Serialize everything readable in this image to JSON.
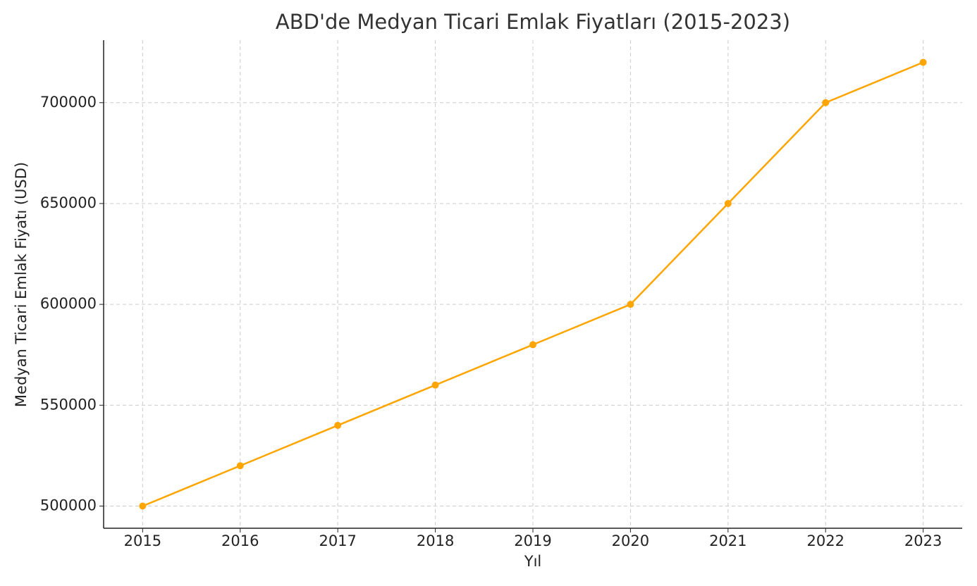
{
  "chart_data": {
    "type": "line",
    "title": "ABD'de Medyan Ticari Emlak Fiyatları (2015-2023)",
    "x_label": "Yıl",
    "y_label": "Medyan Ticari Emlak Fiyatı (USD)",
    "x": [
      2015,
      2016,
      2017,
      2018,
      2019,
      2020,
      2021,
      2022,
      2023
    ],
    "series": [
      {
        "color": "#ffa500",
        "values": [
          500000,
          520000,
          540000,
          560000,
          580000,
          600000,
          650000,
          700000,
          720000
        ]
      }
    ],
    "xlim": [
      2014.6,
      2023.4
    ],
    "xticks": [
      2015,
      2016,
      2017,
      2018,
      2019,
      2020,
      2021,
      2022,
      2023
    ],
    "ylim": [
      489000,
      731000
    ],
    "yticks": [
      500000,
      550000,
      600000,
      650000,
      700000
    ],
    "grid": true
  }
}
